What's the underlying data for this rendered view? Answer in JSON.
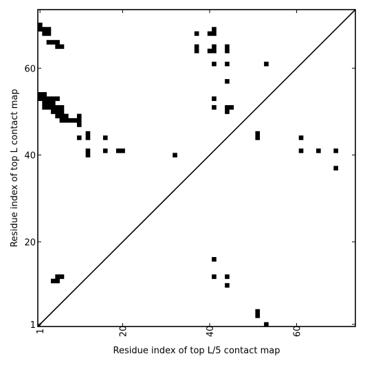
{
  "chart_data": {
    "type": "heatmap",
    "title": "",
    "xlabel": "Residue index of top L/5 contact map",
    "ylabel": "Residue index of top L contact map",
    "xlim": [
      0.5,
      73.5
    ],
    "ylim": [
      0.5,
      73.5
    ],
    "x_ticks": [
      {
        "value": 1,
        "label": "1"
      },
      {
        "value": 20,
        "label": "20"
      },
      {
        "value": 40,
        "label": "40"
      },
      {
        "value": 60,
        "label": "60"
      }
    ],
    "y_ticks": [
      {
        "value": 1,
        "label": "1"
      },
      {
        "value": 20,
        "label": "20"
      },
      {
        "value": 40,
        "label": "40"
      },
      {
        "value": 60,
        "label": "60"
      }
    ],
    "diagonal": true,
    "mark_color": "#000000",
    "background_color": "#ffffff",
    "contacts": [
      [
        1,
        70
      ],
      [
        1,
        69
      ],
      [
        2,
        69
      ],
      [
        3,
        69
      ],
      [
        2,
        68
      ],
      [
        3,
        68
      ],
      [
        3,
        66
      ],
      [
        4,
        66
      ],
      [
        5,
        66
      ],
      [
        5,
        65
      ],
      [
        6,
        65
      ],
      [
        1,
        54
      ],
      [
        2,
        54
      ],
      [
        1,
        53
      ],
      [
        2,
        53
      ],
      [
        3,
        53
      ],
      [
        4,
        53
      ],
      [
        5,
        53
      ],
      [
        2,
        52
      ],
      [
        3,
        52
      ],
      [
        4,
        52
      ],
      [
        2,
        51
      ],
      [
        3,
        51
      ],
      [
        4,
        51
      ],
      [
        5,
        51
      ],
      [
        6,
        51
      ],
      [
        4,
        50
      ],
      [
        5,
        50
      ],
      [
        6,
        50
      ],
      [
        5,
        49
      ],
      [
        6,
        49
      ],
      [
        7,
        49
      ],
      [
        6,
        48
      ],
      [
        7,
        48
      ],
      [
        8,
        48
      ],
      [
        9,
        48
      ],
      [
        10,
        48
      ],
      [
        10,
        49
      ],
      [
        10,
        47
      ],
      [
        10,
        44
      ],
      [
        12,
        45
      ],
      [
        12,
        44
      ],
      [
        16,
        44
      ],
      [
        12,
        41
      ],
      [
        12,
        40
      ],
      [
        16,
        41
      ],
      [
        19,
        41
      ],
      [
        20,
        41
      ],
      [
        32,
        40
      ],
      [
        37,
        68
      ],
      [
        37,
        65
      ],
      [
        37,
        64
      ],
      [
        40,
        68
      ],
      [
        41,
        68
      ],
      [
        41,
        69
      ],
      [
        40,
        64
      ],
      [
        41,
        64
      ],
      [
        41,
        65
      ],
      [
        44,
        65
      ],
      [
        44,
        64
      ],
      [
        41,
        61
      ],
      [
        44,
        61
      ],
      [
        53,
        61
      ],
      [
        44,
        57
      ],
      [
        41,
        53
      ],
      [
        41,
        51
      ],
      [
        44,
        51
      ],
      [
        45,
        51
      ],
      [
        44,
        50
      ],
      [
        51,
        45
      ],
      [
        51,
        44
      ],
      [
        61,
        44
      ],
      [
        61,
        41
      ],
      [
        65,
        41
      ],
      [
        69,
        41
      ],
      [
        69,
        37
      ],
      [
        41,
        16
      ],
      [
        41,
        12
      ],
      [
        44,
        12
      ],
      [
        44,
        10
      ],
      [
        4,
        11
      ],
      [
        5,
        11
      ],
      [
        5,
        12
      ],
      [
        6,
        12
      ],
      [
        51,
        4
      ],
      [
        51,
        3
      ],
      [
        53,
        1
      ]
    ]
  }
}
